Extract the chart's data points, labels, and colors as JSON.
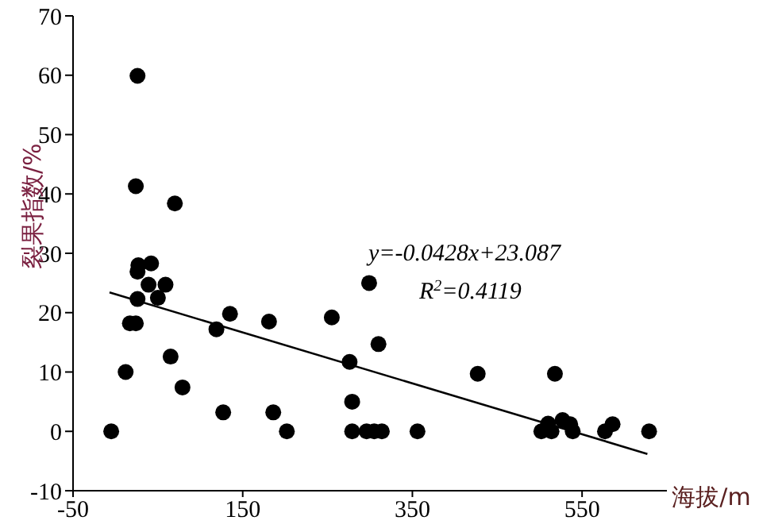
{
  "chart_data": {
    "type": "scatter",
    "xlabel": "海拔/m",
    "ylabel": "裂果指数/%",
    "xlim": [
      -50,
      650
    ],
    "xticks": [
      -50,
      150,
      350,
      550
    ],
    "ylim": [
      -10,
      70
    ],
    "yticks": [
      -10,
      0,
      10,
      20,
      30,
      40,
      50,
      60,
      70
    ],
    "grid": false,
    "marker": "circle",
    "annotations": [
      "y=-0.0428x+23.087",
      "R$^{2}$=0.4119"
    ],
    "series": [
      {
        "type": "scatter",
        "color": "#000000",
        "x": [
          -5,
          12,
          17,
          24,
          24,
          26,
          26,
          27,
          26,
          39,
          42,
          50,
          59,
          70,
          65,
          79,
          119,
          127,
          135,
          181,
          186,
          202,
          255,
          276,
          279,
          279,
          299,
          296,
          305,
          314,
          310,
          356,
          427,
          518,
          502,
          510,
          514,
          527,
          536,
          539,
          577,
          586,
          629
        ],
        "values": [
          0,
          10,
          18.2,
          18.2,
          41.3,
          59.9,
          26.9,
          28,
          22.3,
          24.7,
          28.3,
          22.5,
          24.7,
          38.4,
          12.6,
          7.4,
          17.2,
          3.2,
          19.8,
          18.5,
          3.2,
          0,
          19.2,
          11.7,
          5,
          0,
          25,
          0,
          0,
          0,
          14.7,
          0,
          9.7,
          9.7,
          0,
          1.3,
          0,
          1.9,
          1.2,
          0,
          0,
          1.2,
          0
        ]
      },
      {
        "type": "line",
        "color": "#000000",
        "marker": "none",
        "x": [
          -7,
          627
        ],
        "values": [
          23.4,
          -3.8
        ]
      }
    ]
  }
}
